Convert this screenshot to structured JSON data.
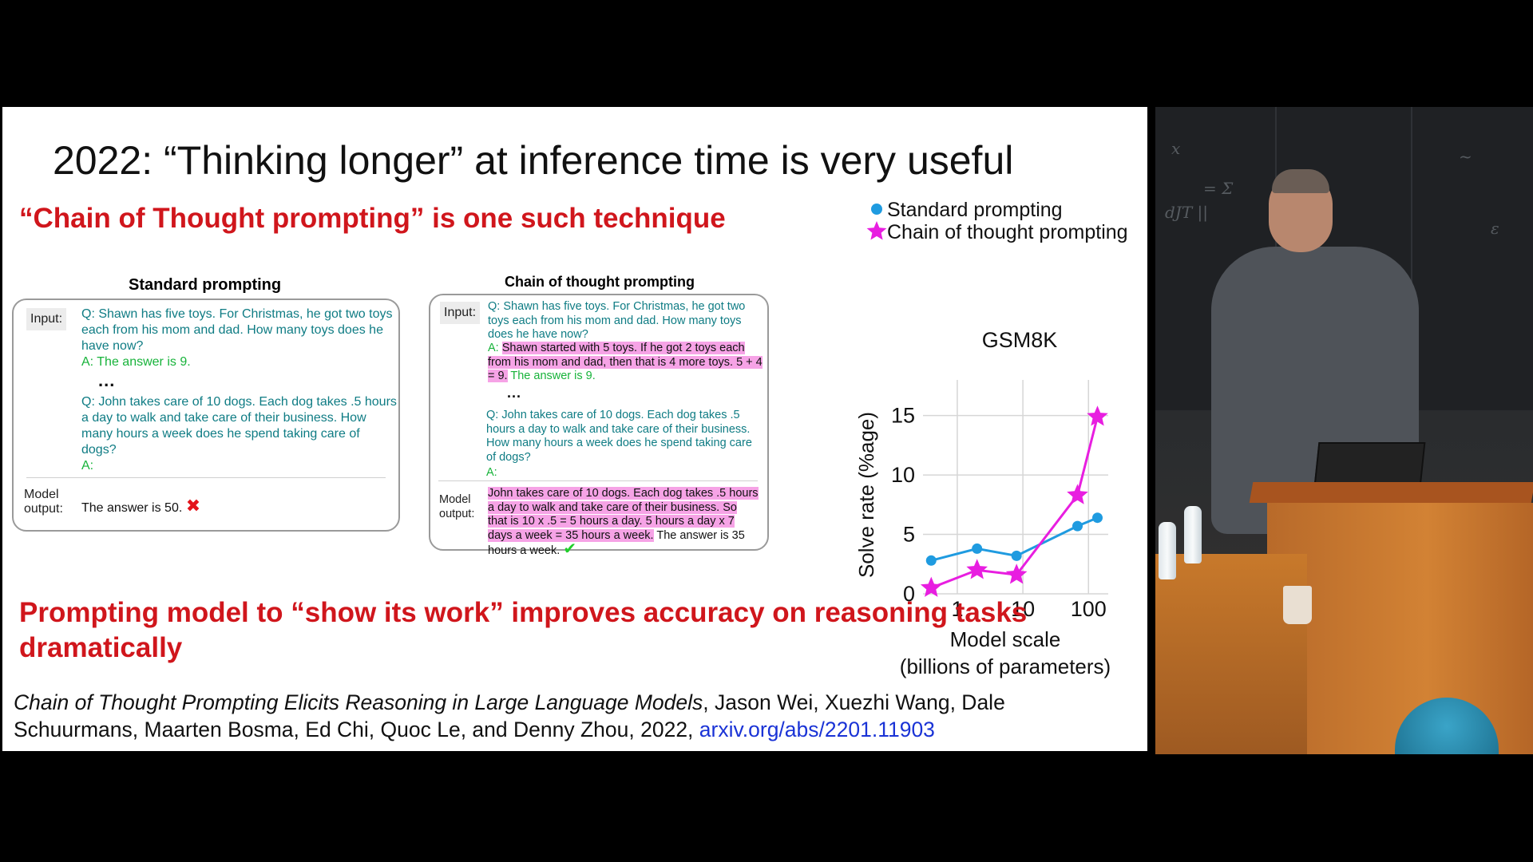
{
  "slide": {
    "title": "2022: “Thinking longer” at inference time is very useful",
    "subtitle": "“Chain of Thought prompting” is one such technique",
    "takeaway": "Prompting model to “show its work” improves accuracy on reasoning tasks dramatically",
    "citation": {
      "paper": "Chain of Thought Prompting Elicits Reasoning in Large Language Models",
      "authors": ", Jason Wei, Xuezhi Wang, Dale Schuurmans, Maarten Bosma, Ed Chi, Quoc Le, and Denny Zhou, 2022, ",
      "link": "arxiv.org/abs/2201.11903"
    }
  },
  "standard_panel": {
    "title": "Standard prompting",
    "input_label": "Input:",
    "q1": "Q: Shawn has five toys. For Christmas, he got two toys each from his mom and dad. How many toys does he have now?",
    "a1": "A: The answer is 9.",
    "ellipsis": "...",
    "q2": "Q: John takes care of 10 dogs.  Each dog takes .5 hours a day to walk and take care of their business.  How many hours a week does he spend taking care of dogs?",
    "a2": "A:",
    "output_label": "Model output:",
    "output": "The answer is 50.",
    "output_mark": "✖"
  },
  "cot_panel": {
    "title": "Chain of thought prompting",
    "input_label": "Input:",
    "q1": "Q: Shawn has five toys. For Christmas, he got two toys each from his mom and dad. How many toys does he have now?",
    "a1_prefix": "A:",
    "a1_reasoning": "Shawn started with 5 toys. If he got 2 toys each from his mom and dad, then that is 4 more toys. 5 + 4 = 9.",
    "a1_answer": "The answer is 9.",
    "ellipsis": "...",
    "q2": "Q: John takes care of 10 dogs.  Each dog takes .5 hours a day to walk and take care of their business.  How many hours a week does he spend taking care of dogs?",
    "a2": "A:",
    "output_label": "Model output:",
    "output_reasoning": "John takes care of 10 dogs. Each dog takes .5 hours a day to walk and take care of their business. So that is 10 x .5 = 5 hours a day. 5 hours a day x 7 days a week = 35 hours a week.",
    "output_answer": "The answer is 35 hours a week.",
    "output_mark": "✔"
  },
  "chart_data": {
    "type": "line",
    "title": "GSM8K",
    "xlabel": "Model scale",
    "xlabel2": "(billions of parameters)",
    "ylabel": "Solve rate (%age)",
    "x_scale": "log",
    "x_ticks": [
      1,
      10,
      100
    ],
    "x_tick_labels": [
      "1",
      "10",
      "100"
    ],
    "y_ticks": [
      0,
      5,
      10,
      15
    ],
    "y_tick_labels": [
      "0",
      "5",
      "10",
      "15"
    ],
    "ylim": [
      0,
      18
    ],
    "grid": true,
    "legend_position": "top",
    "series": [
      {
        "name": "Standard prompting",
        "marker": "circle",
        "color": "#1f9be0",
        "x": [
          0.4,
          2,
          8,
          68,
          137
        ],
        "y": [
          2.8,
          3.8,
          3.2,
          5.7,
          6.4
        ]
      },
      {
        "name": "Chain of thought prompting",
        "marker": "star",
        "color": "#e81ee0",
        "x": [
          0.4,
          2,
          8,
          68,
          137
        ],
        "y": [
          0.5,
          2.0,
          1.6,
          8.3,
          14.9
        ]
      }
    ]
  },
  "video": {
    "scribbles": [
      "x",
      "= Σ",
      "dJT  ||",
      "~",
      "ε"
    ],
    "accent_wall": "#1f2124",
    "accent_podium": "#d28234"
  }
}
